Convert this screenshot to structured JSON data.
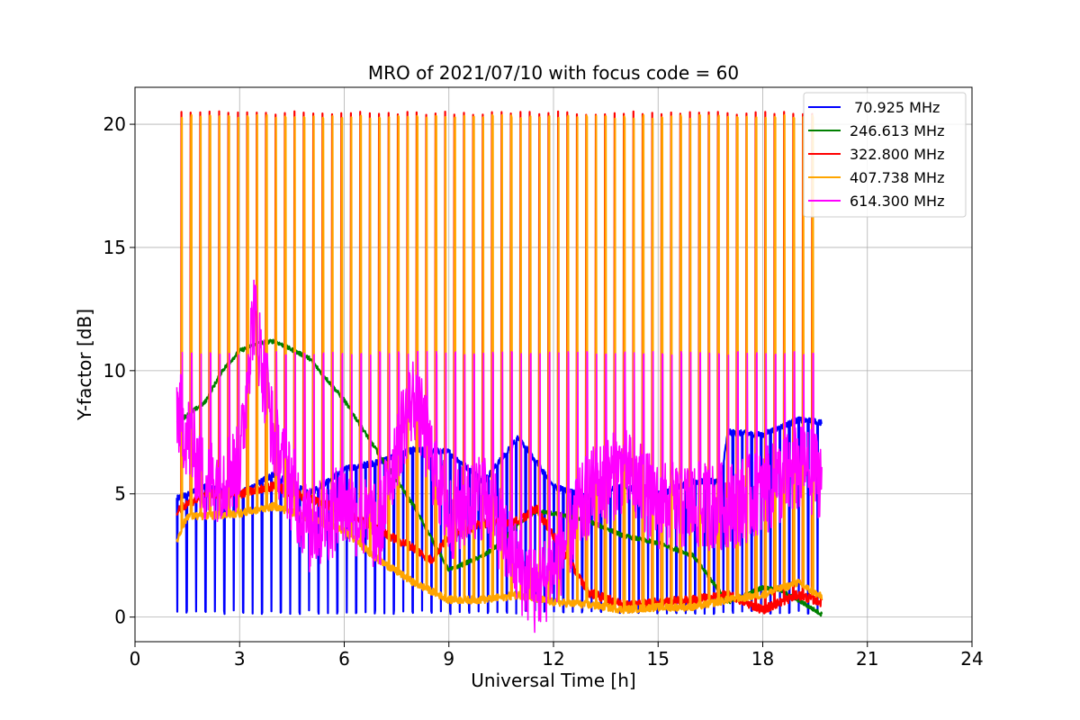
{
  "chart_data": {
    "type": "line",
    "title": "MRO of 2021/07/10 with focus code = 60",
    "xlabel": "Universal Time [h]",
    "ylabel": "Y-factor [dB]",
    "xlim": [
      0,
      24
    ],
    "ylim": [
      -1,
      21.5
    ],
    "xticks": [
      0,
      3,
      6,
      9,
      12,
      15,
      18,
      21,
      24
    ],
    "yticks": [
      0,
      5,
      10,
      15,
      20
    ],
    "grid": true,
    "legend_position": "top-right",
    "pulse": {
      "start": 1.2,
      "end": 19.6,
      "period": 0.27
    },
    "series": [
      {
        "name": " 70.925 MHz",
        "color": "#0000ff",
        "spike_to": 0.2,
        "x": [
          1.2,
          2,
          3,
          4,
          5,
          6,
          7,
          8,
          9,
          10,
          11,
          12,
          13,
          14,
          15,
          16,
          16.8,
          17,
          18,
          19,
          19.7
        ],
        "values": [
          4.8,
          5.3,
          5.0,
          5.8,
          5.0,
          6.0,
          6.3,
          6.8,
          6.7,
          5.5,
          7.3,
          5.3,
          4.9,
          5.3,
          5.0,
          5.5,
          5.5,
          7.5,
          7.4,
          8.0,
          7.9
        ]
      },
      {
        "name": "246.613 MHz",
        "color": "#008000",
        "x": [
          1.2,
          2,
          2.5,
          3,
          3.5,
          4,
          5,
          6,
          7,
          8,
          9,
          10,
          10.5,
          11,
          11.5,
          12,
          13,
          14,
          15,
          16,
          17,
          18,
          18.5,
          19,
          19.7
        ],
        "values": [
          7.9,
          8.7,
          10.0,
          10.8,
          11.1,
          11.2,
          10.5,
          8.8,
          6.6,
          4.5,
          1.9,
          2.5,
          3.0,
          3.8,
          4.3,
          4.2,
          3.9,
          3.3,
          3.0,
          2.5,
          0.6,
          1.2,
          1.1,
          0.7,
          0.1
        ]
      },
      {
        "name": "322.800 MHz",
        "color": "#ff0000",
        "spike_to": 20.45,
        "x": [
          1.2,
          2,
          3,
          4,
          5,
          6,
          7,
          8,
          8.5,
          9,
          10,
          11,
          11.5,
          12,
          13,
          14,
          15,
          16,
          17,
          18,
          19,
          19.7
        ],
        "values": [
          4.3,
          5.0,
          5.0,
          5.3,
          4.8,
          4.3,
          3.5,
          2.8,
          2.3,
          3.3,
          3.8,
          3.9,
          4.4,
          3.3,
          1.0,
          0.5,
          0.6,
          0.7,
          0.9,
          0.3,
          0.9,
          0.6
        ]
      },
      {
        "name": "407.738 MHz",
        "color": "#ffa500",
        "spike_to": 20.3,
        "x": [
          1.2,
          1.5,
          2,
          3,
          4,
          5,
          6,
          7,
          8,
          9,
          10,
          11,
          12,
          13,
          14,
          15,
          16,
          17,
          18,
          19,
          19.7
        ],
        "values": [
          3.1,
          4.1,
          4.1,
          4.2,
          4.5,
          4.0,
          3.5,
          2.3,
          1.4,
          0.7,
          0.7,
          0.9,
          0.6,
          0.5,
          0.3,
          0.4,
          0.4,
          0.7,
          0.9,
          1.4,
          0.8
        ]
      },
      {
        "name": "614.300 MHz",
        "color": "#ff00ff",
        "spike_to": 10.7,
        "x": [
          1.2,
          2,
          3,
          3.4,
          4,
          5,
          6,
          7,
          7.5,
          8,
          9,
          10,
          11,
          11.5,
          12,
          13,
          14,
          15,
          16,
          17,
          18,
          19,
          19.7
        ],
        "values": [
          8.5,
          5.5,
          6.0,
          12.5,
          7.0,
          3.5,
          4.5,
          3.5,
          7.0,
          9.0,
          4.0,
          5.0,
          2.0,
          1.0,
          2.0,
          5.0,
          6.0,
          4.5,
          4.5,
          4.5,
          5.0,
          6.0,
          5.8
        ]
      }
    ]
  }
}
